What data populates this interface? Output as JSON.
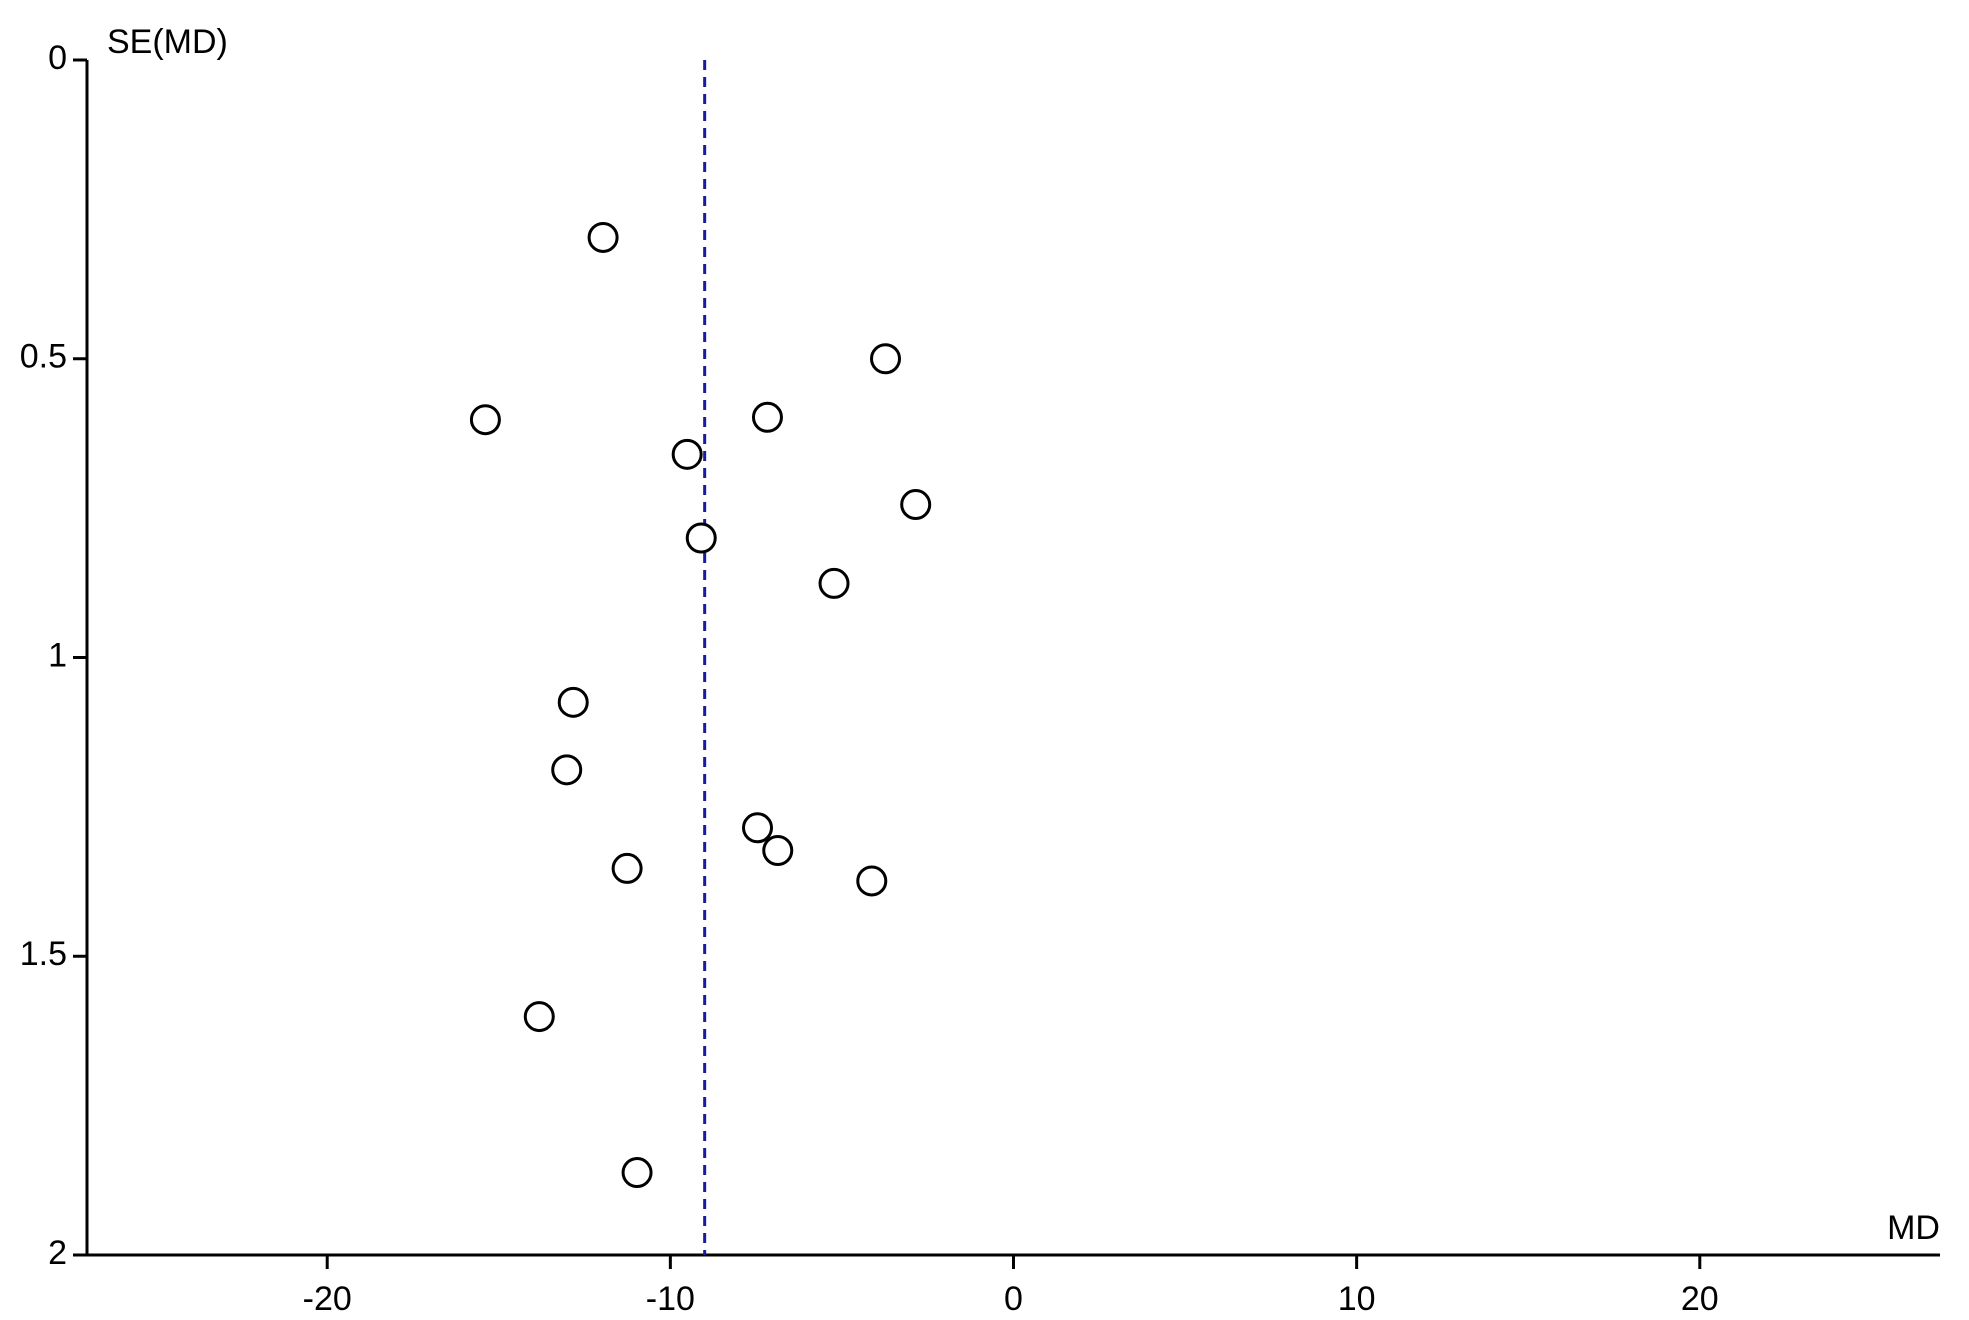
{
  "chart_data": {
    "type": "scatter",
    "x_label": "MD",
    "y_label": "SE(MD)",
    "xlim": [
      -27,
      27
    ],
    "xticks": [
      -20,
      -10,
      0,
      10,
      20
    ],
    "ylim": [
      2,
      0
    ],
    "yticks": [
      0,
      0.5,
      1,
      1.5,
      2
    ],
    "y_inverted": true,
    "reference_line": -9.0,
    "reference_color": "#1a1aa0",
    "series": [
      {
        "color": "#000000",
        "x": [
          -11.96,
          -3.73,
          -15.39,
          -7.17,
          -9.51,
          -2.85,
          -9.1,
          -5.23,
          -12.83,
          -13.02,
          -7.46,
          -6.87,
          -11.26,
          -4.13,
          -13.82,
          -10.97
        ],
        "y": [
          0.297,
          0.5,
          0.602,
          0.598,
          0.66,
          0.744,
          0.8,
          0.876,
          1.075,
          1.188,
          1.285,
          1.323,
          1.353,
          1.374,
          1.601,
          1.862
        ]
      }
    ]
  }
}
